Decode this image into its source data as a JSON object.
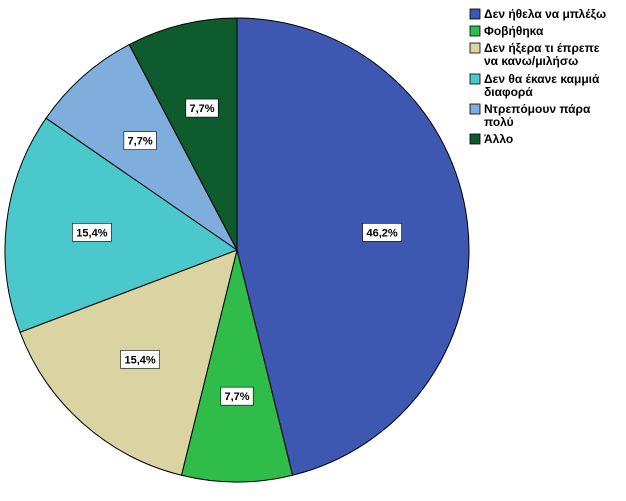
{
  "chart_data": {
    "type": "pie",
    "slices": [
      {
        "label": "Δεν ήθελα να μπλέξω",
        "value": 46.2,
        "value_label": "46,2%",
        "color": "#3e58b2"
      },
      {
        "label": "Φοβήθηκα",
        "value": 7.7,
        "value_label": "7,7%",
        "color": "#2fbc48"
      },
      {
        "label": "Δεν ήξερα τι έπρεπε να κανω/μιλήσω",
        "value": 15.4,
        "value_label": "15,4%",
        "color": "#d9d4a2"
      },
      {
        "label": "Δεν θα έκανε καμμιά διαφορά",
        "value": 15.4,
        "value_label": "15,4%",
        "color": "#4bc8cc"
      },
      {
        "label": "Ντρεπόμουν πάρα πολύ",
        "value": 7.7,
        "value_label": "7,7%",
        "color": "#7faedc"
      },
      {
        "label": "Άλλο",
        "value": 7.7,
        "value_label": "7,7%",
        "color": "#0e5b2e"
      }
    ],
    "start": "12 o'clock",
    "direction": "clockwise",
    "legend_position": "top-right"
  }
}
